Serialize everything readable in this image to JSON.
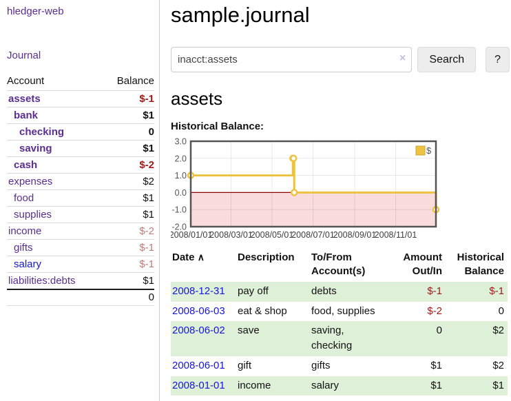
{
  "sidebar": {
    "app_title": "hledger-web",
    "journal_label": "Journal",
    "accounts": {
      "header_account": "Account",
      "header_balance": "Balance",
      "rows": [
        {
          "name": "assets",
          "balance": "$-1",
          "depth": 1,
          "bold": true
        },
        {
          "name": "bank",
          "balance": "$1",
          "depth": 2,
          "bold": true
        },
        {
          "name": "checking",
          "balance": "0",
          "depth": 3,
          "bold": true
        },
        {
          "name": "saving",
          "balance": "$1",
          "depth": 3,
          "bold": true
        },
        {
          "name": "cash",
          "balance": "$-2",
          "depth": 2,
          "bold": true
        },
        {
          "name": "expenses",
          "balance": "$2",
          "depth": 1,
          "bold": false
        },
        {
          "name": "food",
          "balance": "$1",
          "depth": 2,
          "bold": false
        },
        {
          "name": "supplies",
          "balance": "$1",
          "depth": 2,
          "bold": false
        },
        {
          "name": "income",
          "balance": "$-2",
          "depth": 1,
          "bold": false
        },
        {
          "name": "gifts",
          "balance": "$-1",
          "depth": 2,
          "bold": false
        },
        {
          "name": "salary",
          "balance": "$-1",
          "depth": 2,
          "bold": false,
          "blue": true
        },
        {
          "name": "liabilities:debts",
          "balance": "$1",
          "depth": 1,
          "bold": false
        }
      ],
      "total": "0"
    }
  },
  "main": {
    "page_title": "sample.journal",
    "search": {
      "value": "inacct:assets",
      "clear_icon": "×",
      "button_label": "Search",
      "help_label": "?"
    },
    "account_heading": "assets",
    "chart_title": "Historical Balance:",
    "register": {
      "headers": {
        "date": "Date",
        "sort_icon": "∧",
        "description": "Description",
        "account": "To/From Account(s)",
        "amount": "Amount Out/In",
        "balance": "Historical Balance"
      },
      "rows": [
        {
          "date": "2008-12-31",
          "description": "pay off",
          "accounts": "debts",
          "amount": "$-1",
          "balance": "$-1"
        },
        {
          "date": "2008-06-03",
          "description": "eat & shop",
          "accounts": "food, supplies",
          "amount": "$-2",
          "balance": "0"
        },
        {
          "date": "2008-06-02",
          "description": "save",
          "accounts": "saving, checking",
          "amount": "0",
          "balance": "$2"
        },
        {
          "date": "2008-06-01",
          "description": "gift",
          "accounts": "gifts",
          "amount": "$1",
          "balance": "$2"
        },
        {
          "date": "2008-01-01",
          "description": "income",
          "accounts": "salary",
          "amount": "$1",
          "balance": "$1"
        }
      ]
    }
  },
  "chart_data": {
    "type": "line",
    "step": true,
    "title": "Historical Balance:",
    "series": [
      {
        "name": "$",
        "color": "#EDC240",
        "points": [
          [
            "2008-01-01",
            1
          ],
          [
            "2008-06-01",
            2
          ],
          [
            "2008-06-02",
            2
          ],
          [
            "2008-06-03",
            0
          ],
          [
            "2008-12-31",
            -1
          ]
        ]
      }
    ],
    "xlim": [
      "2008-01-01",
      "2008-12-31"
    ],
    "ylim": [
      -2,
      3
    ],
    "x_ticks": [
      "2008/01/01",
      "2008/03/01",
      "2008/05/01",
      "2008/07/01",
      "2008/09/01",
      "2008/11/01"
    ],
    "y_ticks": [
      3.0,
      2.0,
      1.0,
      0.0,
      -1.0,
      -2.0
    ],
    "grid": true,
    "legend_position": "top-right",
    "negative_fill": "#fadcdc",
    "zero_line_color": "#8b0000"
  },
  "colors": {
    "link_purple": "#5b2d90",
    "link_blue": "#1515e0",
    "negative_strong": "#9e1a1a",
    "negative_soft": "#bd7d7d",
    "zebra_green": "#dff0d8",
    "series_gold": "#EDC240",
    "chart_border": "#545454",
    "button_bg": "#ededed",
    "clear_icon": "#c8bcdf"
  }
}
